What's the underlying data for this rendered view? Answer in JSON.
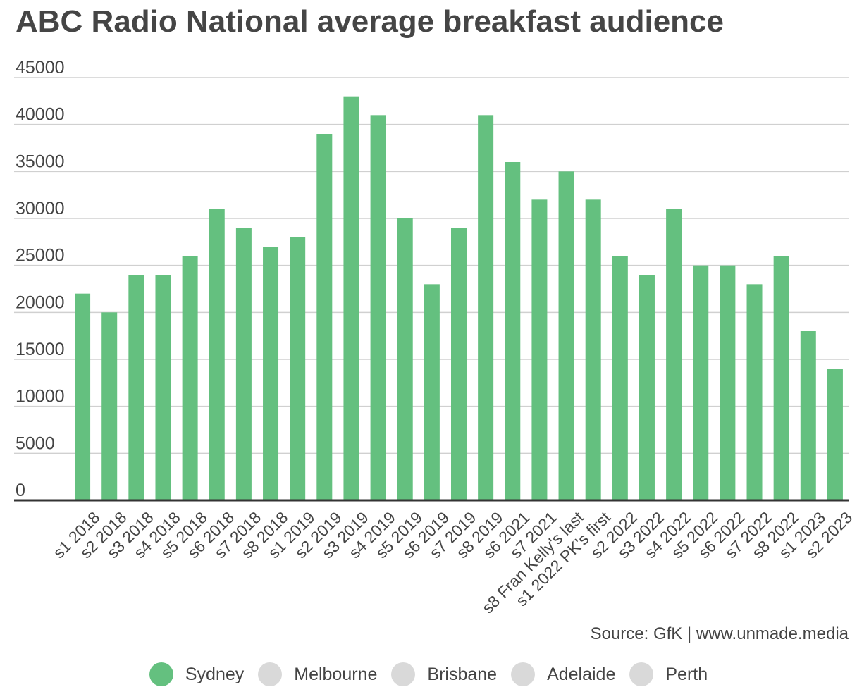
{
  "title": "ABC Radio National average breakfast audience",
  "source": "Source: GfK | www.unmade.media",
  "colors": {
    "active": "#64c07f",
    "inactive": "#d9d9d9",
    "grid": "#d0d0d0",
    "axis": "#333333"
  },
  "legend": [
    {
      "label": "Sydney",
      "active": true
    },
    {
      "label": "Melbourne",
      "active": false
    },
    {
      "label": "Brisbane",
      "active": false
    },
    {
      "label": "Adelaide",
      "active": false
    },
    {
      "label": "Perth",
      "active": false
    }
  ],
  "chart_data": {
    "type": "bar",
    "title": "ABC Radio National average breakfast audience",
    "ylim": [
      0,
      45000
    ],
    "yticks": [
      "0",
      "5000",
      "10000",
      "15000",
      "20000",
      "25000",
      "30000",
      "35000",
      "40000",
      "45000"
    ],
    "grid": true,
    "categories": [
      "s1 2018",
      "s2 2018",
      "s3 2018",
      "s4 2018",
      "s5 2018",
      "s6 2018",
      "s7 2018",
      "s8 2018",
      "s1 2019",
      "s2 2019",
      "s3 2019",
      "s4 2019",
      "s5 2019",
      "s6 2019",
      "s7 2019",
      "s8 2019",
      "s6 2021",
      "s7 2021",
      "s8 Fran Kelly's last",
      "s1 2022 PK's first",
      "s2 2022",
      "s3 2022",
      "s4 2022",
      "s5 2022",
      "s6 2022",
      "s7 2022",
      "s8 2022",
      "s1 2023",
      "s2 2023"
    ],
    "series": [
      {
        "name": "Sydney",
        "values": [
          22000,
          20000,
          24000,
          24000,
          26000,
          31000,
          29000,
          27000,
          28000,
          39000,
          43000,
          41000,
          30000,
          23000,
          29000,
          41000,
          36000,
          32000,
          35000,
          32000,
          26000,
          24000,
          31000,
          25000,
          25000,
          23000,
          26000,
          18000,
          14000
        ]
      }
    ]
  }
}
